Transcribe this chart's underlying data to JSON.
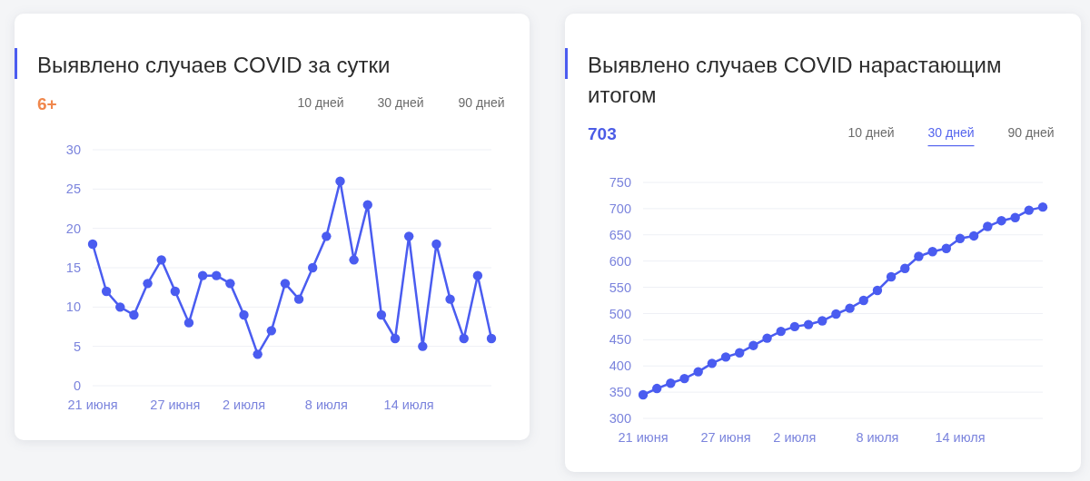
{
  "chart_data": [
    {
      "type": "line",
      "title": "Выявлено случаев COVID за сутки",
      "subtitle": "6+",
      "annotations": [
        "10 дней",
        "30 дней",
        "90 дней"
      ],
      "categories": [
        "21 июня",
        null,
        null,
        null,
        null,
        null,
        "27 июня",
        null,
        null,
        null,
        null,
        "2 июля",
        null,
        null,
        null,
        null,
        null,
        "8 июля",
        null,
        null,
        null,
        null,
        null,
        "14 июля",
        null,
        null,
        null,
        null,
        null,
        null
      ],
      "values": [
        18,
        12,
        10,
        9,
        13,
        16,
        12,
        8,
        14,
        14,
        13,
        9,
        4,
        7,
        13,
        11,
        15,
        19,
        26,
        16,
        23,
        9,
        6,
        19,
        5,
        18,
        11,
        6,
        14,
        6
      ],
      "color": "#4a5cf0",
      "ylim": [
        0,
        30
      ],
      "yticks": [
        0,
        5,
        10,
        15,
        20,
        25,
        30
      ],
      "grid": "y",
      "marker": "circle"
    },
    {
      "type": "line",
      "title": "Выявлено случаев COVID нарастающим итогом",
      "subtitle": "703",
      "annotations": [
        "10 дней",
        "30 дней",
        "90 дней"
      ],
      "categories": [
        "21 июня",
        null,
        null,
        null,
        null,
        null,
        "27 июня",
        null,
        null,
        null,
        null,
        "2 июля",
        null,
        null,
        null,
        null,
        null,
        "8 июля",
        null,
        null,
        null,
        null,
        null,
        "14 июля",
        null,
        null,
        null,
        null,
        null,
        null
      ],
      "values": [
        345,
        357,
        367,
        376,
        389,
        405,
        417,
        425,
        439,
        453,
        466,
        475,
        479,
        486,
        499,
        510,
        525,
        544,
        570,
        586,
        609,
        618,
        624,
        643,
        648,
        666,
        677,
        683,
        697,
        703
      ],
      "color": "#4a5cf0",
      "ylim": [
        300,
        750
      ],
      "yticks": [
        300,
        350,
        400,
        450,
        500,
        550,
        600,
        650,
        700,
        750
      ],
      "grid": "y",
      "marker": "circle"
    }
  ]
}
